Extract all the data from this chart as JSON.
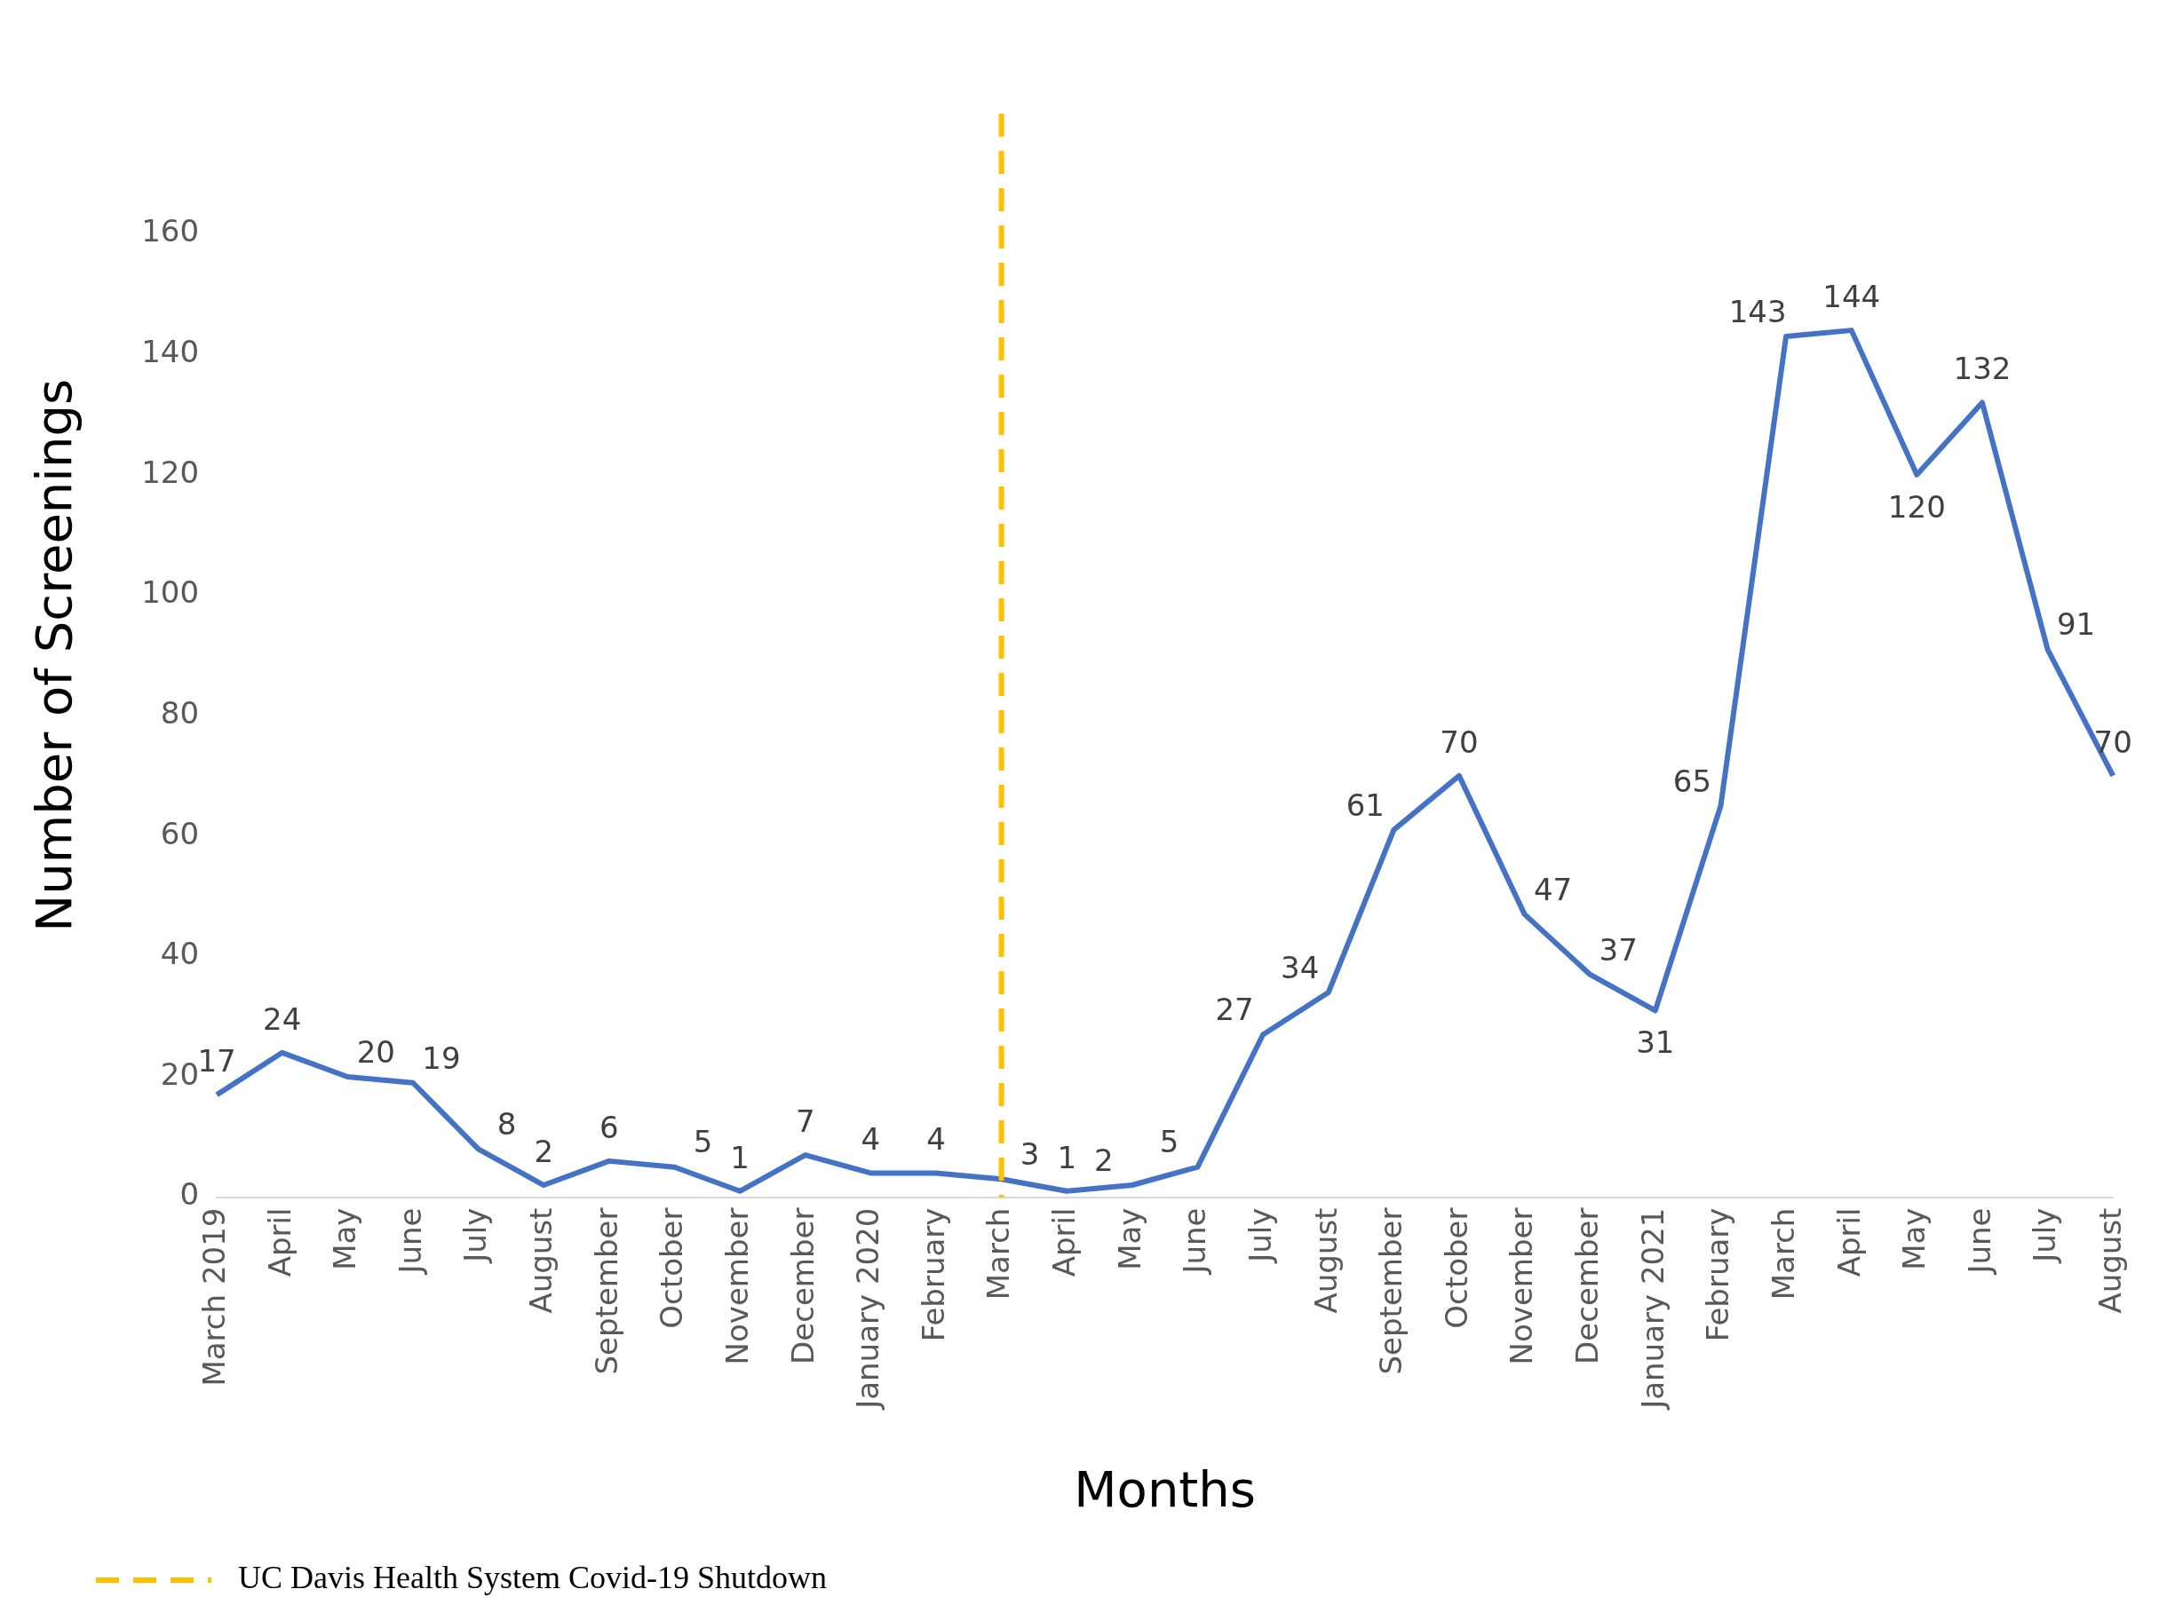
{
  "chart_data": {
    "type": "line",
    "xlabel": "Months",
    "ylabel": "Number of Screenings",
    "categories": [
      "March 2019",
      "April",
      "May",
      "June",
      "July",
      "August",
      "September",
      "October",
      "November",
      "December",
      "January 2020",
      "February",
      "March",
      "April",
      "May",
      "June",
      "July",
      "August",
      "September",
      "October",
      "November",
      "December",
      "January 2021",
      "February",
      "March",
      "April",
      "May",
      "June",
      "July",
      "August"
    ],
    "series": [
      {
        "color": "#4472c4",
        "values": [
          17,
          24,
          20,
          19,
          8,
          2,
          6,
          5,
          1,
          7,
          4,
          4,
          3,
          1,
          2,
          5,
          27,
          34,
          61,
          70,
          47,
          37,
          31,
          65,
          143,
          144,
          120,
          132,
          91,
          70
        ]
      }
    ],
    "ylim": [
      0,
      180
    ],
    "yticks": [
      0,
      20,
      40,
      60,
      80,
      100,
      120,
      140,
      160
    ],
    "grid": false,
    "data_labels": true,
    "marker": "none",
    "line_style": "solid",
    "legend": "bottom left",
    "ref_lines": [
      {
        "axis": "x",
        "value": "March",
        "label": "UC Davis Health System Covid-19 Shutdown",
        "color": "#ffc000",
        "line_style": "dashed"
      }
    ]
  }
}
